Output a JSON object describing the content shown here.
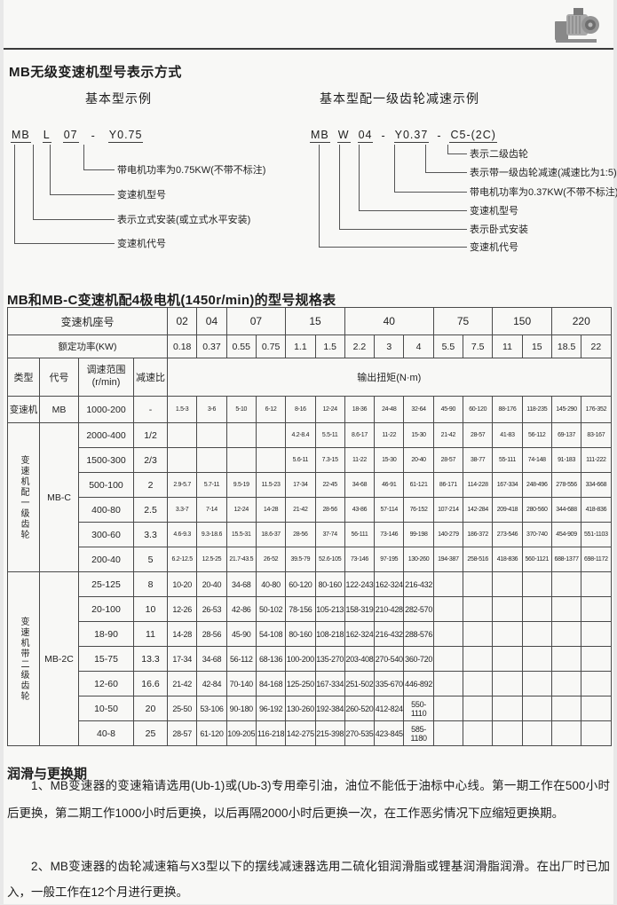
{
  "page_title": "MB无级变速机型号表示方式",
  "diagrams": {
    "left": {
      "heading": "基本型示例",
      "code": [
        "MB",
        "L",
        "07",
        "-",
        "Y0.75"
      ],
      "callouts": [
        "带电机功率为0.75KW(不带不标注)",
        "变速机型号",
        "表示立式安装(或立式水平安装)",
        "变速机代号"
      ]
    },
    "right": {
      "heading": "基本型配一级齿轮减速示例",
      "code": [
        "MB",
        "W",
        "04",
        "-",
        "Y0.37",
        "-",
        "C5-(2C)"
      ],
      "callouts": [
        "表示二级齿轮",
        "表示带一级齿轮减速(减速比为1:5)",
        "带电机功率为0.37KW(不带不标注)",
        "变速机型号",
        "表示卧式安装",
        "变速机代号"
      ]
    }
  },
  "table": {
    "title": "MB和MB-C变速机配4极电机(1450r/min)的型号规格表",
    "seat_label": "变速机座号",
    "seat_groups": [
      {
        "label": "02",
        "span": 1
      },
      {
        "label": "04",
        "span": 1
      },
      {
        "label": "07",
        "span": 2
      },
      {
        "label": "15",
        "span": 2
      },
      {
        "label": "40",
        "span": 3
      },
      {
        "label": "75",
        "span": 2
      },
      {
        "label": "150",
        "span": 2
      },
      {
        "label": "220",
        "span": 2
      }
    ],
    "power_label": "额定功率(KW)",
    "powers": [
      "0.18",
      "0.37",
      "0.55",
      "0.75",
      "1.1",
      "1.5",
      "2.2",
      "3",
      "4",
      "5.5",
      "7.5",
      "11",
      "15",
      "18.5",
      "22"
    ],
    "head": {
      "type": "类型",
      "code": "代号",
      "range": "调速范围\n(r/min)",
      "ratio": "减速比",
      "torque": "输出扭矩(N·m)"
    },
    "groups": [
      {
        "type": "变速机",
        "code": "MB",
        "vertical": false,
        "rows": [
          {
            "range": "1000-200",
            "ratio": "-",
            "values": [
              "1.5-3",
              "3-6",
              "5-10",
              "6-12",
              "8-16",
              "12-24",
              "18-36",
              "24-48",
              "32-64",
              "45-90",
              "60-120",
              "88-176",
              "118-235",
              "145-290",
              "176-352"
            ]
          }
        ]
      },
      {
        "type": "变速机配一级齿轮",
        "code": "MB-C",
        "vertical": true,
        "rows": [
          {
            "range": "2000-400",
            "ratio": "1/2",
            "values": [
              "",
              "",
              "",
              "",
              "4.2-8.4",
              "5.5-11",
              "8.6-17",
              "11-22",
              "15-30",
              "21-42",
              "28-57",
              "41-83",
              "56-112",
              "69-137",
              "83-167"
            ]
          },
          {
            "range": "1500-300",
            "ratio": "2/3",
            "values": [
              "",
              "",
              "",
              "",
              "5.6-11",
              "7.3-15",
              "11-22",
              "15-30",
              "20-40",
              "28-57",
              "38-77",
              "55-111",
              "74-148",
              "91-183",
              "111-222"
            ]
          },
          {
            "range": "500-100",
            "ratio": "2",
            "values": [
              "2.9-5.7",
              "5.7-11",
              "9.5-19",
              "11.5-23",
              "17-34",
              "22-45",
              "34-68",
              "46-91",
              "61-121",
              "86-171",
              "114-228",
              "167-334",
              "248-496",
              "278-556",
              "334-668"
            ]
          },
          {
            "range": "400-80",
            "ratio": "2.5",
            "values": [
              "3.3-7",
              "7-14",
              "12-24",
              "14-28",
              "21-42",
              "28-56",
              "43-86",
              "57-114",
              "76-152",
              "107-214",
              "142-284",
              "209-418",
              "280-560",
              "344-688",
              "418-836"
            ]
          },
          {
            "range": "300-60",
            "ratio": "3.3",
            "values": [
              "4.6-9.3",
              "9.3-18.6",
              "15.5-31",
              "18.6-37",
              "28-56",
              "37-74",
              "56-111",
              "73-146",
              "99-198",
              "140-279",
              "186-372",
              "273-546",
              "370-740",
              "454-909",
              "551-1103"
            ]
          },
          {
            "range": "200-40",
            "ratio": "5",
            "values": [
              "6.2-12.5",
              "12.5-25",
              "21.7-43.5",
              "26-52",
              "39.5-79",
              "52.6-105",
              "73-146",
              "97-195",
              "130-260",
              "194-387",
              "258-516",
              "418-836",
              "560-1121",
              "688-1377",
              "698-1172"
            ]
          }
        ]
      },
      {
        "type": "变速机带二级齿轮",
        "code": "MB-2C",
        "vertical": true,
        "rows": [
          {
            "range": "25-125",
            "ratio": "8",
            "values": [
              "10-20",
              "20-40",
              "34-68",
              "40-80",
              "60-120",
              "80-160",
              "122-243",
              "162-324",
              "216-432",
              "",
              "",
              "",
              "",
              "",
              ""
            ]
          },
          {
            "range": "20-100",
            "ratio": "10",
            "values": [
              "12-26",
              "26-53",
              "42-86",
              "50-102",
              "78-156",
              "105-213",
              "158-319",
              "210-428",
              "282-570",
              "",
              "",
              "",
              "",
              "",
              ""
            ]
          },
          {
            "range": "18-90",
            "ratio": "11",
            "values": [
              "14-28",
              "28-56",
              "45-90",
              "54-108",
              "80-160",
              "108-218",
              "162-324",
              "216-432",
              "288-576",
              "",
              "",
              "",
              "",
              "",
              ""
            ]
          },
          {
            "range": "15-75",
            "ratio": "13.3",
            "values": [
              "17-34",
              "34-68",
              "56-112",
              "68-136",
              "100-200",
              "135-270",
              "203-408",
              "270-540",
              "360-720",
              "",
              "",
              "",
              "",
              "",
              ""
            ]
          },
          {
            "range": "12-60",
            "ratio": "16.6",
            "values": [
              "21-42",
              "42-84",
              "70-140",
              "84-168",
              "125-250",
              "167-334",
              "251-502",
              "335-670",
              "446-892",
              "",
              "",
              "",
              "",
              "",
              ""
            ]
          },
          {
            "range": "10-50",
            "ratio": "20",
            "values": [
              "25-50",
              "53-106",
              "90-180",
              "96-192",
              "130-260",
              "192-384",
              "260-520",
              "412-824",
              "550-1110",
              "",
              "",
              "",
              "",
              "",
              ""
            ]
          },
          {
            "range": "40-8",
            "ratio": "25",
            "values": [
              "28-57",
              "61-120",
              "109-205",
              "116-218",
              "142-275",
              "215-398",
              "270-535",
              "423-845",
              "585-1180",
              "",
              "",
              "",
              "",
              "",
              ""
            ]
          }
        ]
      }
    ]
  },
  "lubrication": {
    "heading": "润滑与更换期",
    "paragraphs": [
      "1、MB变速器的变速箱请选用(Ub-1)或(Ub-3)专用牵引油，油位不能低于油标中心线。第一期工作在500小时后更换，第二期工作1000小时后更换，以后再隔2000小时后更换一次，在工作恶劣情况下应缩短更换期。",
      "2、MB变速器的齿轮减速箱与X3型以下的摆线减速器选用二硫化钼润滑脂或锂基润滑脂润滑。在出厂时已加入，一般工作在12个月进行更换。"
    ]
  },
  "colors": {
    "border": "#4a4a4a",
    "text": "#1d1d1d",
    "page_bg": "#f8f8f6"
  }
}
